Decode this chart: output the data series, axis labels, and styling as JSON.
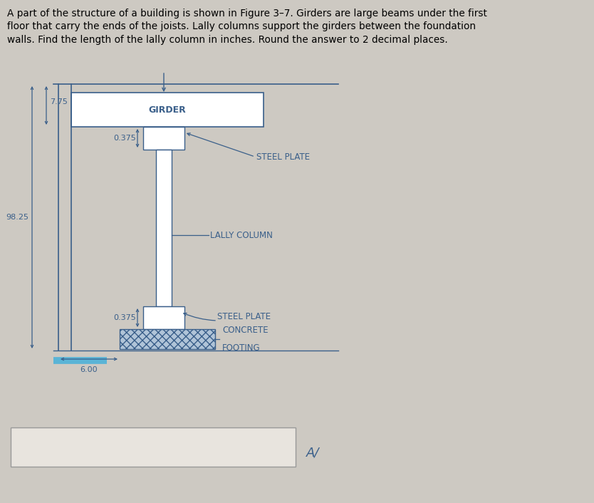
{
  "bg_color": "#cdc9c2",
  "diagram_bg": "#dedad4",
  "line_color": "#3a5f8a",
  "text_color": "#3a5f8a",
  "title_text": "A part of the structure of a building is shown in Figure 3–7. Girders are large beams under the first\nfloor that carry the ends of the joists. Lally columns support the girders between the foundation\nwalls. Find the length of the lally column in inches. Round the answer to 2 decimal places.",
  "title_fontsize": 9.8,
  "dim_98_25": "98.25",
  "dim_7_75": "7.75",
  "dim_0_375_top": "0.375",
  "dim_0_375_bot": "0.375",
  "dim_6_00": "6.00",
  "label_girder": "GIRDER",
  "label_steel_plate_top": "STEEL PLATE",
  "label_lally": "LALLY COLUMN",
  "label_steel_plate_bot": "STEEL PLATE",
  "label_concrete_1": "CONCRETE",
  "label_concrete_2": "FOOTING",
  "answer_label": "A/",
  "answer_box_color": "#e8e4de",
  "cyan_bar_color": "#5ab4d6",
  "hatch_color": "#8aaacc"
}
